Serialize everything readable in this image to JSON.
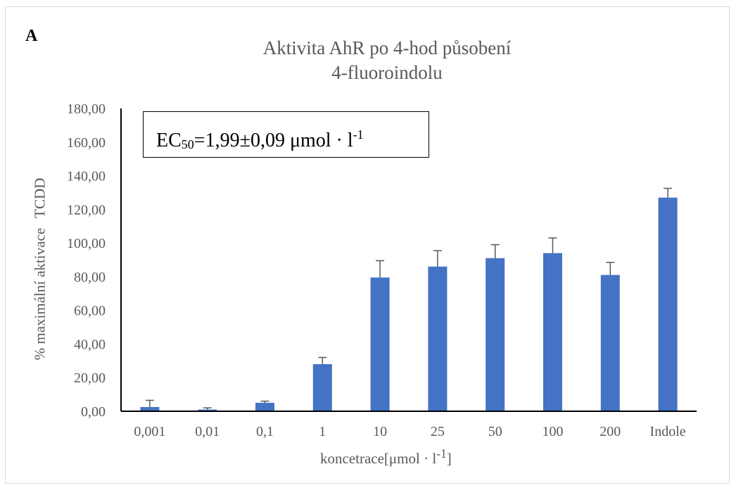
{
  "panel_label": "A",
  "chart_data": {
    "type": "bar",
    "title_line1": "Aktivita AhR po 4-hod působení",
    "title_line2": "4-fluoroindolu",
    "ylabel_part1": "% maximální aktivace",
    "ylabel_part2": "TCDD",
    "xlabel_main": "koncetrace[μmol · l",
    "xlabel_sup": "-1",
    "xlabel_end": "]",
    "categories": [
      "0,001",
      "0,01",
      "0,1",
      "1",
      "10",
      "25",
      "50",
      "100",
      "200",
      "Indole"
    ],
    "values": [
      2.5,
      1.0,
      5.0,
      28.0,
      79.5,
      86.0,
      91.0,
      94.0,
      81.0,
      127.0
    ],
    "errors": [
      4.0,
      1.0,
      1.0,
      4.0,
      10.0,
      9.5,
      8.0,
      9.0,
      7.5,
      5.5
    ],
    "ylim": [
      0,
      180
    ],
    "yticks": [
      "0,00",
      "20,00",
      "40,00",
      "60,00",
      "80,00",
      "100,00",
      "120,00",
      "140,00",
      "160,00",
      "180,00"
    ],
    "bar_color": "#4472C4",
    "grid": false,
    "annotation": {
      "prefix": "EC",
      "sub": "50",
      "value": "=1,99±0,09 μmol · l",
      "sup": "-1"
    }
  }
}
